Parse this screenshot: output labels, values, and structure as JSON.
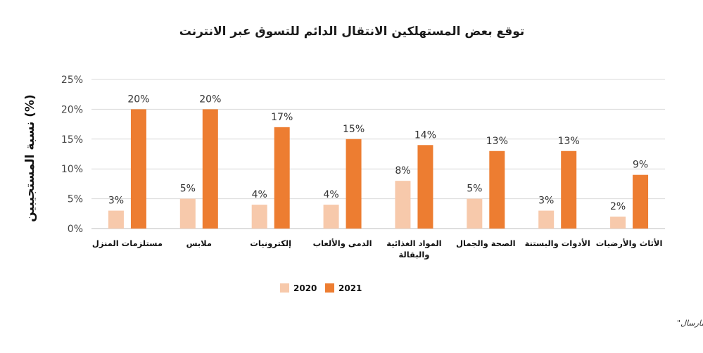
{
  "chart_data": {
    "type": "bar",
    "title": "توقع بعض المستهلكين الانتقال الدائم للتسوق عبر الانترنت",
    "ylabel": "نسبة المستجيبين (%)",
    "xlabel": "",
    "ylim": [
      0,
      25
    ],
    "yticks": [
      0,
      5,
      10,
      15,
      20,
      25
    ],
    "ytick_labels": [
      "0%",
      "5%",
      "10%",
      "15%",
      "20%",
      "25%"
    ],
    "grid": true,
    "legend_position": "bottom",
    "categories": [
      "مستلزمات المنزل",
      "ملابس",
      "إلكترونيات",
      "الدمى والألعاب",
      "المواد الغذائية والبقالة",
      "الصحة والجمال",
      "الأدوات والبستنة",
      "الأثاث والأرضيات"
    ],
    "series": [
      {
        "name": "2020",
        "color": "#f7c9ab",
        "values": [
          3,
          5,
          4,
          4,
          8,
          5,
          3,
          2
        ],
        "labels": [
          "3%",
          "5%",
          "4%",
          "4%",
          "8%",
          "5%",
          "3%",
          "2%"
        ]
      },
      {
        "name": "2021",
        "color": "#ed7d31",
        "values": [
          20,
          20,
          17,
          15,
          14,
          13,
          13,
          9
        ],
        "labels": [
          "20%",
          "20%",
          "17%",
          "15%",
          "14%",
          "13%",
          "13%",
          "9%"
        ]
      }
    ],
    "source": "المصدر: اقتصاديات التجزئة و\"الفاريز ومارسال\""
  }
}
